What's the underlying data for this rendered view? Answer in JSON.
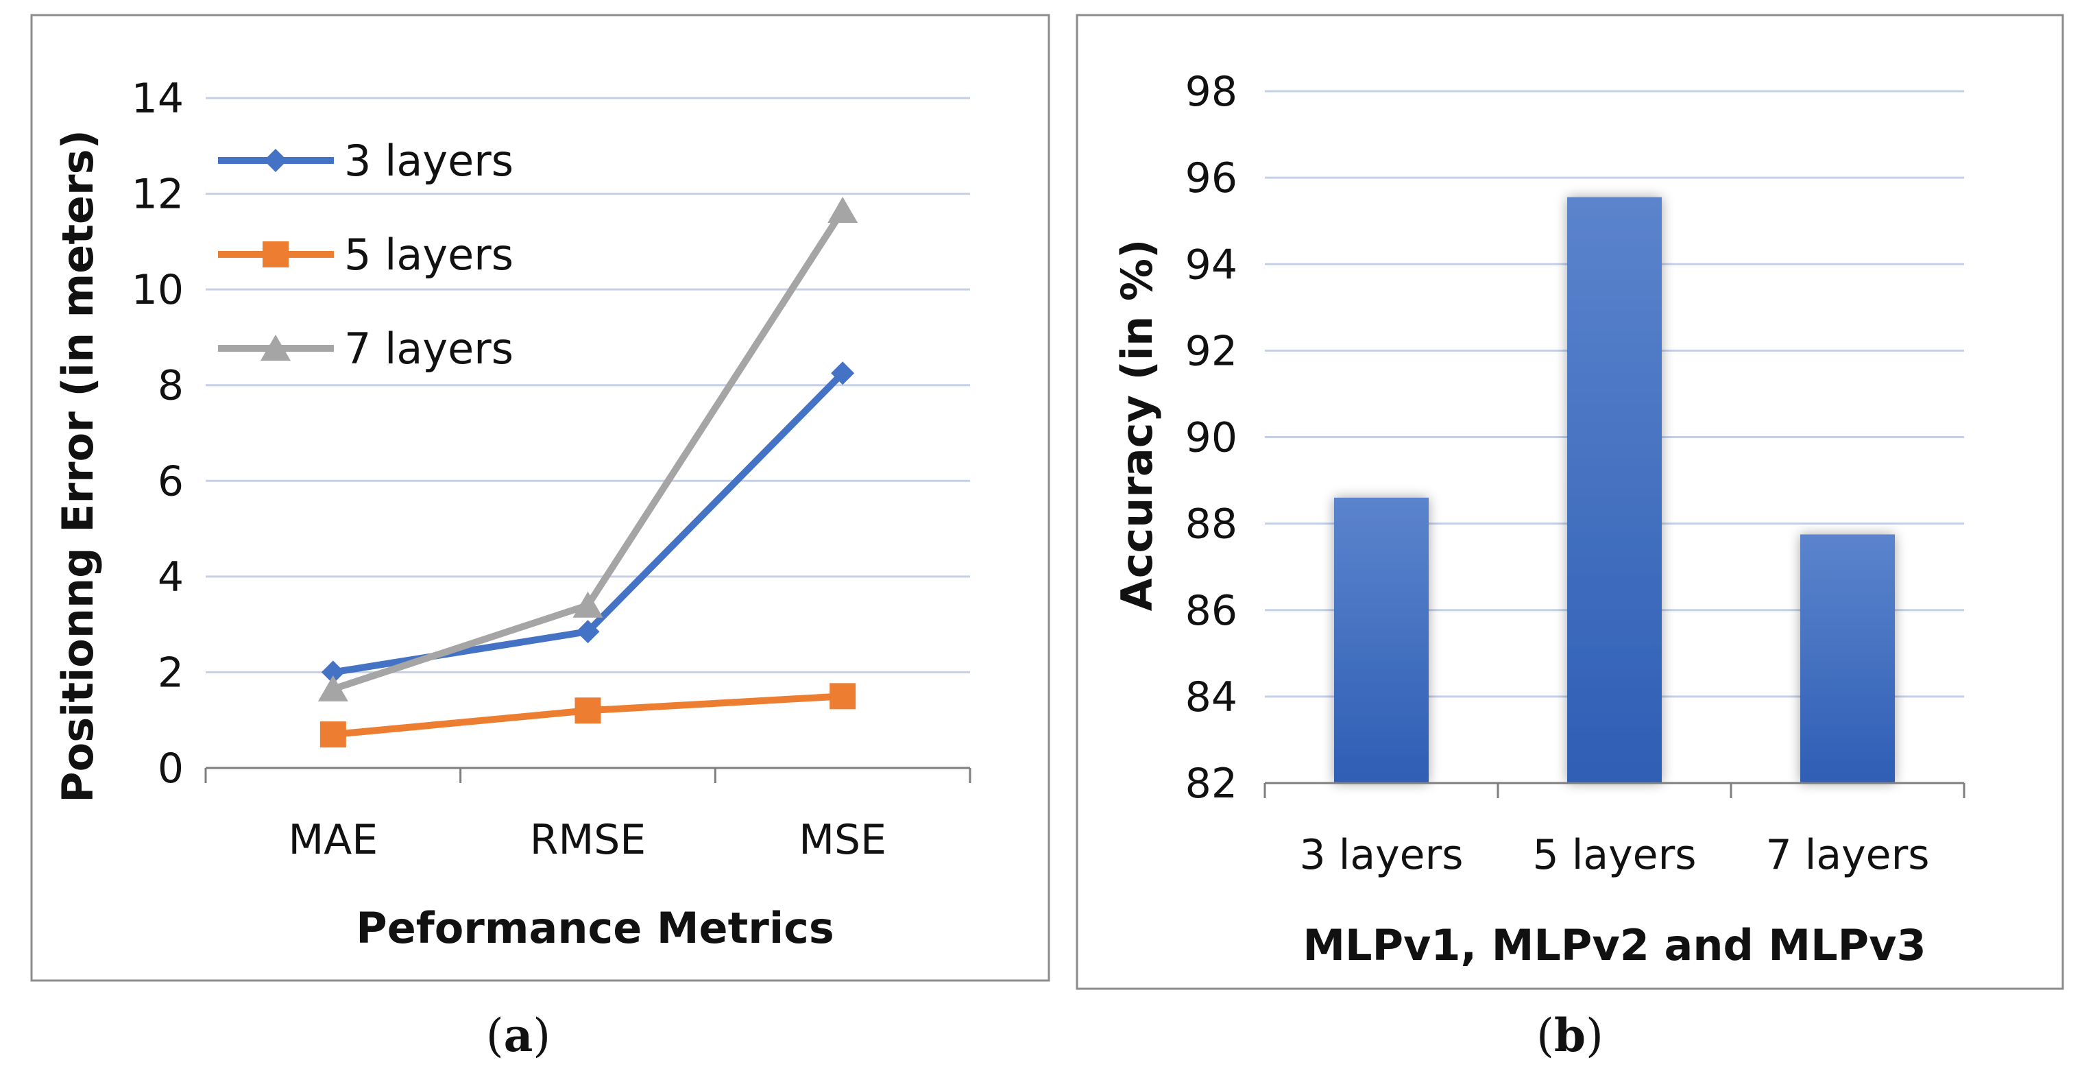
{
  "chart_data": [
    {
      "type": "line",
      "caption_open": "(",
      "caption_letter": "a",
      "caption_close": ")",
      "title": "",
      "xlabel": "Peformance Metrics",
      "ylabel": "Positionng Error (in meters)",
      "categories": [
        "MAE",
        "RMSE",
        "MSE"
      ],
      "ylim": [
        0,
        14
      ],
      "yticks": [
        "0",
        "2",
        "4",
        "6",
        "8",
        "10",
        "12",
        "14"
      ],
      "grid": true,
      "legend_position": "top-left",
      "series": [
        {
          "name": "3 layers",
          "values": [
            2.0,
            2.85,
            8.25
          ],
          "color": "#4472C4",
          "marker": "diamond"
        },
        {
          "name": "5 layers",
          "values": [
            0.7,
            1.2,
            1.5
          ],
          "color": "#ED7D31",
          "marker": "square"
        },
        {
          "name": "7 layers",
          "values": [
            1.65,
            3.4,
            11.65
          ],
          "color": "#A5A5A5",
          "marker": "triangle"
        }
      ]
    },
    {
      "type": "bar",
      "caption_open": "(",
      "caption_letter": "b",
      "caption_close": ")",
      "title": "",
      "xlabel": "MLPv1, MLPv2 and MLPv3",
      "ylabel": "Accuracy (in %)",
      "categories": [
        "3 layers",
        "5 layers",
        "7 layers"
      ],
      "values": [
        88.6,
        95.55,
        87.75
      ],
      "ylim": [
        82,
        98
      ],
      "yticks": [
        "82",
        "84",
        "86",
        "88",
        "90",
        "92",
        "94",
        "96",
        "98"
      ],
      "grid": true,
      "color": "#4472C4"
    }
  ]
}
